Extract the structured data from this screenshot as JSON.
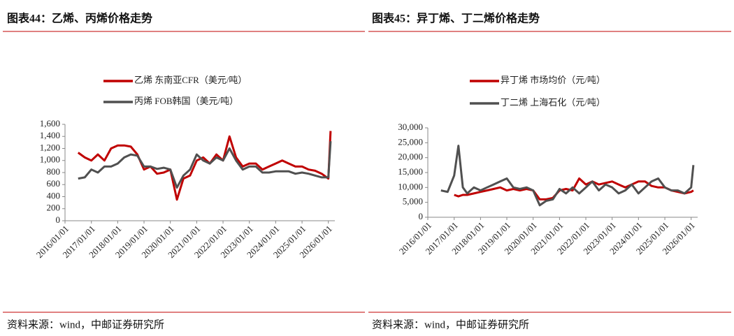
{
  "chart_data": [
    {
      "type": "line",
      "title": "图表44：乙烯、丙烯价格走势",
      "source": "资料来源：wind，中邮证券研究所",
      "x": [
        "2016/07/01",
        "2016/10/01",
        "2017/01/01",
        "2017/04/01",
        "2017/07/01",
        "2017/10/01",
        "2018/01/01",
        "2018/04/01",
        "2018/07/01",
        "2018/10/01",
        "2019/01/01",
        "2019/04/01",
        "2019/07/01",
        "2019/10/01",
        "2020/01/01",
        "2020/04/01",
        "2020/07/01",
        "2020/10/01",
        "2021/01/01",
        "2021/04/01",
        "2021/07/01",
        "2021/10/01",
        "2022/01/01",
        "2022/04/01",
        "2022/07/01",
        "2022/10/01",
        "2023/01/01",
        "2023/04/01",
        "2023/07/01",
        "2023/10/01",
        "2024/01/01",
        "2024/04/01",
        "2024/07/01",
        "2024/10/01",
        "2025/01/01",
        "2025/04/01",
        "2025/07/01",
        "2025/10/01",
        "2026/01/01",
        "2026/02/01"
      ],
      "series": [
        {
          "name": "乙烯 东南亚CFR（美元/吨）",
          "color": "#c00000",
          "values": [
            1130,
            1050,
            1000,
            1100,
            1000,
            1200,
            1250,
            1250,
            1230,
            1100,
            850,
            900,
            780,
            800,
            850,
            350,
            700,
            750,
            1000,
            1050,
            950,
            1100,
            1000,
            1400,
            1050,
            900,
            950,
            950,
            850,
            900,
            950,
            1000,
            950,
            900,
            900,
            850,
            830,
            780,
            700,
            1490
          ]
        },
        {
          "name": "丙烯 FOB韩国（美元/吨）",
          "color": "#505050",
          "values": [
            700,
            720,
            850,
            800,
            900,
            900,
            950,
            1050,
            1100,
            1080,
            900,
            900,
            860,
            880,
            850,
            550,
            750,
            850,
            1100,
            1000,
            950,
            1050,
            1000,
            1200,
            1000,
            850,
            900,
            900,
            800,
            800,
            820,
            820,
            820,
            780,
            800,
            780,
            750,
            720,
            720,
            1320
          ]
        }
      ],
      "xlim": [
        "2016/01/01",
        "2026/04/01"
      ],
      "xticks": [
        "2016/01/01",
        "2017/01/01",
        "2018/01/01",
        "2019/01/01",
        "2020/01/01",
        "2021/01/01",
        "2022/01/01",
        "2023/01/01",
        "2024/01/01",
        "2025/01/01",
        "2026/01/01"
      ],
      "ylim": [
        0,
        1600
      ],
      "yticks": [
        0,
        200,
        400,
        600,
        800,
        {
          "value": 1000,
          "label": "1,000"
        },
        {
          "value": 1200,
          "label": "1,200"
        },
        {
          "value": 1400,
          "label": "1,400"
        },
        {
          "value": 1600,
          "label": "1,600"
        }
      ]
    },
    {
      "type": "line",
      "title": "图表45：异丁烯、丁二烯价格走势",
      "source": "资料来源：wind，中邮证券研究所",
      "x": [
        "2016/07/01",
        "2016/10/01",
        "2017/01/01",
        "2017/03/01",
        "2017/05/01",
        "2017/07/01",
        "2017/10/01",
        "2018/01/01",
        "2018/04/01",
        "2018/07/01",
        "2018/10/01",
        "2019/01/01",
        "2019/04/01",
        "2019/07/01",
        "2019/10/01",
        "2020/01/01",
        "2020/04/01",
        "2020/07/01",
        "2020/10/01",
        "2021/01/01",
        "2021/04/01",
        "2021/07/01",
        "2021/10/01",
        "2022/01/01",
        "2022/04/01",
        "2022/07/01",
        "2022/10/01",
        "2023/01/01",
        "2023/04/01",
        "2023/07/01",
        "2023/10/01",
        "2024/01/01",
        "2024/04/01",
        "2024/07/01",
        "2024/10/01",
        "2025/01/01",
        "2025/04/01",
        "2025/07/01",
        "2025/10/01",
        "2026/01/01",
        "2026/02/01"
      ],
      "series": [
        {
          "name": "异丁烯 市场均价（元/吨）",
          "color": "#c00000",
          "values": [
            null,
            null,
            7500,
            7000,
            7500,
            7500,
            8000,
            8500,
            9000,
            9500,
            10000,
            9000,
            9500,
            9000,
            9500,
            9000,
            6000,
            6000,
            6500,
            9000,
            9500,
            9000,
            13000,
            11000,
            12000,
            11000,
            11500,
            12000,
            11000,
            10000,
            11000,
            12000,
            12000,
            10500,
            10000,
            10000,
            9000,
            8500,
            8000,
            8500,
            9000
          ]
        },
        {
          "name": "丁二烯 上海石化（元/吨）",
          "color": "#505050",
          "values": [
            9000,
            8500,
            14000,
            24000,
            10000,
            8000,
            10000,
            9000,
            10000,
            11000,
            12000,
            13000,
            10000,
            9500,
            10000,
            9000,
            4000,
            5500,
            6000,
            9500,
            8000,
            10000,
            8000,
            10000,
            12000,
            9000,
            11000,
            10000,
            8000,
            9000,
            11000,
            8000,
            10000,
            12000,
            13000,
            10000,
            9000,
            9000,
            8000,
            10000,
            17500
          ]
        }
      ],
      "xlim": [
        "2016/01/01",
        "2026/04/01"
      ],
      "xticks": [
        "2016/01/01",
        "2017/01/01",
        "2018/01/01",
        "2019/01/01",
        "2020/01/01",
        "2021/01/01",
        "2022/01/01",
        "2023/01/01",
        "2024/01/01",
        "2025/01/01",
        "2026/01/01"
      ],
      "ylim": [
        0,
        30000
      ],
      "yticks": [
        0,
        {
          "value": 5000,
          "label": "5,000"
        },
        {
          "value": 10000,
          "label": "10,000"
        },
        {
          "value": 15000,
          "label": "15,000"
        },
        {
          "value": 20000,
          "label": "20,000"
        },
        {
          "value": 25000,
          "label": "25,000"
        },
        {
          "value": 30000,
          "label": "30,000"
        }
      ]
    }
  ]
}
